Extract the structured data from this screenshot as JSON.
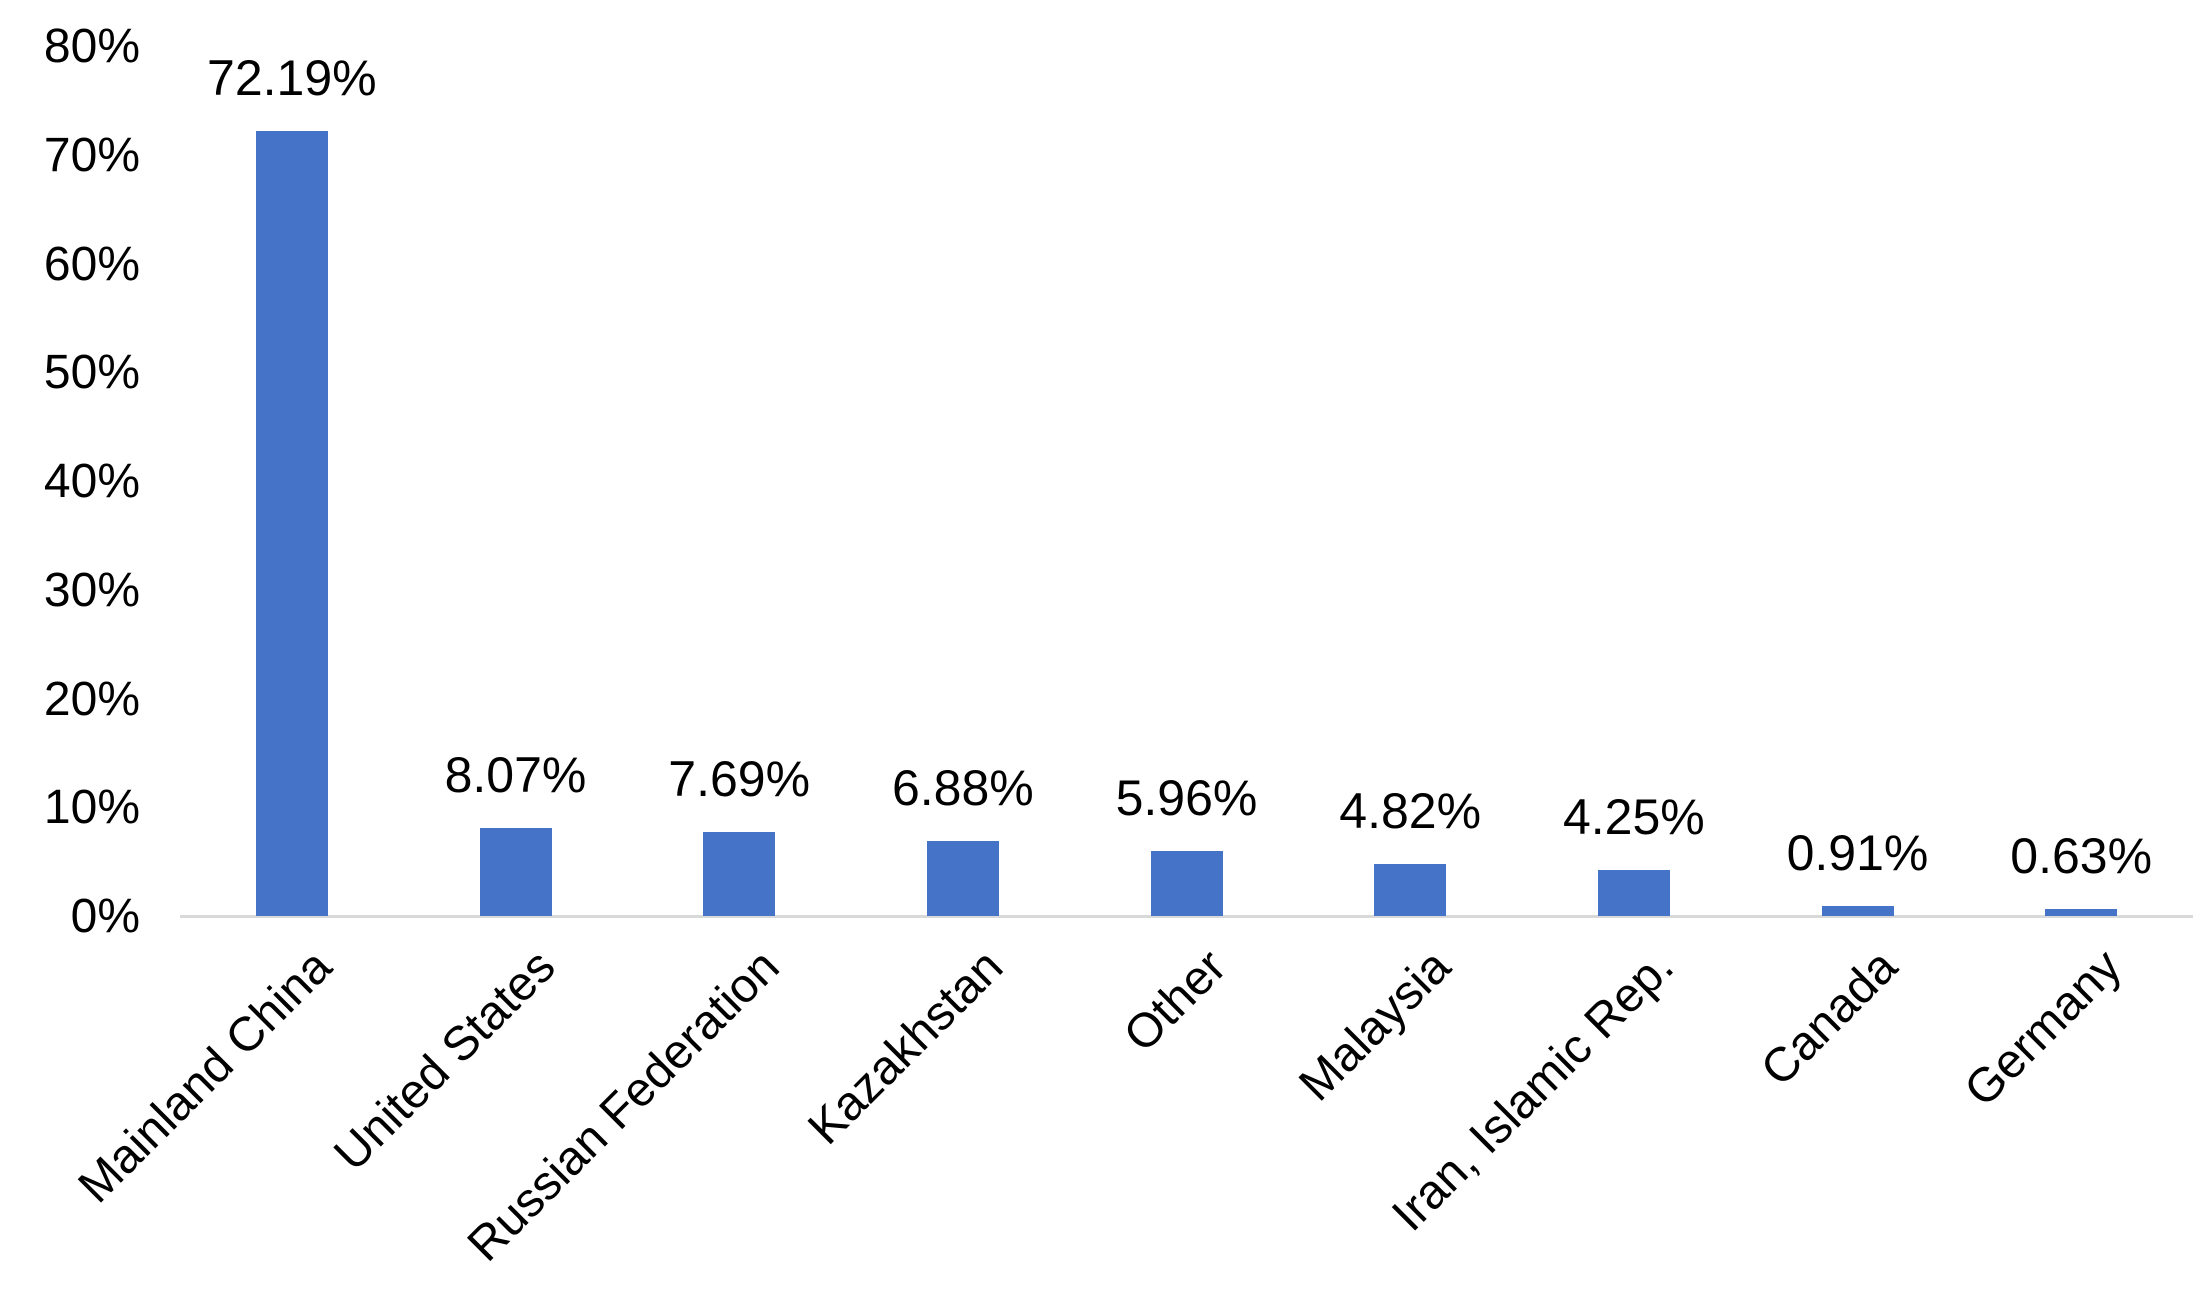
{
  "page": {
    "background_color": "#FFFFFF"
  },
  "chart_data": {
    "type": "bar",
    "title": "",
    "xlabel": "",
    "ylabel": "",
    "categories": [
      "Mainland China",
      "United States",
      "Russian Federation",
      "Kazakhstan",
      "Other",
      "Malaysia",
      "Iran, Islamic Rep.",
      "Canada",
      "Germany"
    ],
    "values": [
      72.19,
      8.07,
      7.69,
      6.88,
      5.96,
      4.82,
      4.25,
      0.91,
      0.63
    ],
    "value_labels": [
      "72.19%",
      "8.07%",
      "7.69%",
      "6.88%",
      "5.96%",
      "4.82%",
      "4.25%",
      "0.91%",
      "0.63%"
    ],
    "ylim": [
      0,
      80
    ],
    "yticks": [
      {
        "value": 80,
        "label": "80%"
      },
      {
        "value": 70,
        "label": "70%"
      },
      {
        "value": 60,
        "label": "60%"
      },
      {
        "value": 50,
        "label": "50%"
      },
      {
        "value": 40,
        "label": "40%"
      },
      {
        "value": 30,
        "label": "30%"
      },
      {
        "value": 20,
        "label": "20%"
      },
      {
        "value": 10,
        "label": "10%"
      },
      {
        "value": 0,
        "label": "0%"
      }
    ],
    "grid": false,
    "legend": false,
    "bar_color": "#4573C7",
    "axis_line_color": "#D9D9D9",
    "text_color": "#000000"
  }
}
